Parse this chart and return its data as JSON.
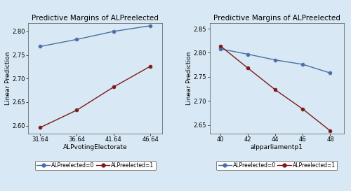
{
  "left": {
    "title": "Predictive Margins of ALPreelected",
    "xlabel": "ALPvotingElectorate",
    "ylabel": "Linear Prediction",
    "xticks": [
      31.64,
      36.64,
      41.64,
      46.64
    ],
    "yticks": [
      2.6,
      2.65,
      2.7,
      2.75,
      2.8
    ],
    "ylim": [
      2.583,
      2.818
    ],
    "xlim": [
      30.0,
      48.3
    ],
    "line0": {
      "x": [
        31.64,
        36.64,
        41.64,
        46.64
      ],
      "y": [
        2.768,
        2.783,
        2.8,
        2.812
      ],
      "color": "#4a6fa5",
      "label": "ALPreelected=0"
    },
    "line1": {
      "x": [
        31.64,
        36.64,
        41.64,
        46.64
      ],
      "y": [
        2.596,
        2.633,
        2.682,
        2.726
      ],
      "color": "#7b1a1a",
      "label": "ALPreelected=1"
    }
  },
  "right": {
    "title": "Predictive Margins of ALPreelected",
    "xlabel": "alpparliamentp1",
    "ylabel": "Linear Prediction",
    "xticks": [
      40,
      42,
      44,
      46,
      48
    ],
    "yticks": [
      2.65,
      2.7,
      2.75,
      2.8,
      2.85
    ],
    "ylim": [
      2.632,
      2.862
    ],
    "xlim": [
      39.2,
      49.0
    ],
    "line0": {
      "x": [
        40,
        42,
        44,
        46,
        48
      ],
      "y": [
        2.808,
        2.797,
        2.785,
        2.776,
        2.758
      ],
      "color": "#4a6fa5",
      "label": "ALPreelected=0"
    },
    "line1": {
      "x": [
        40,
        42,
        44,
        46,
        48
      ],
      "y": [
        2.814,
        2.768,
        2.723,
        2.683,
        2.638
      ],
      "color": "#7b1a1a",
      "label": "ALPreelected=1"
    }
  },
  "bg_color": "#d8e8f4",
  "plot_bg_color": "#d8e8f4",
  "marker": "o",
  "marker_size": 3.5,
  "linewidth": 1.0,
  "font_size": 6.5,
  "title_font_size": 7.5,
  "tick_font_size": 6.0
}
